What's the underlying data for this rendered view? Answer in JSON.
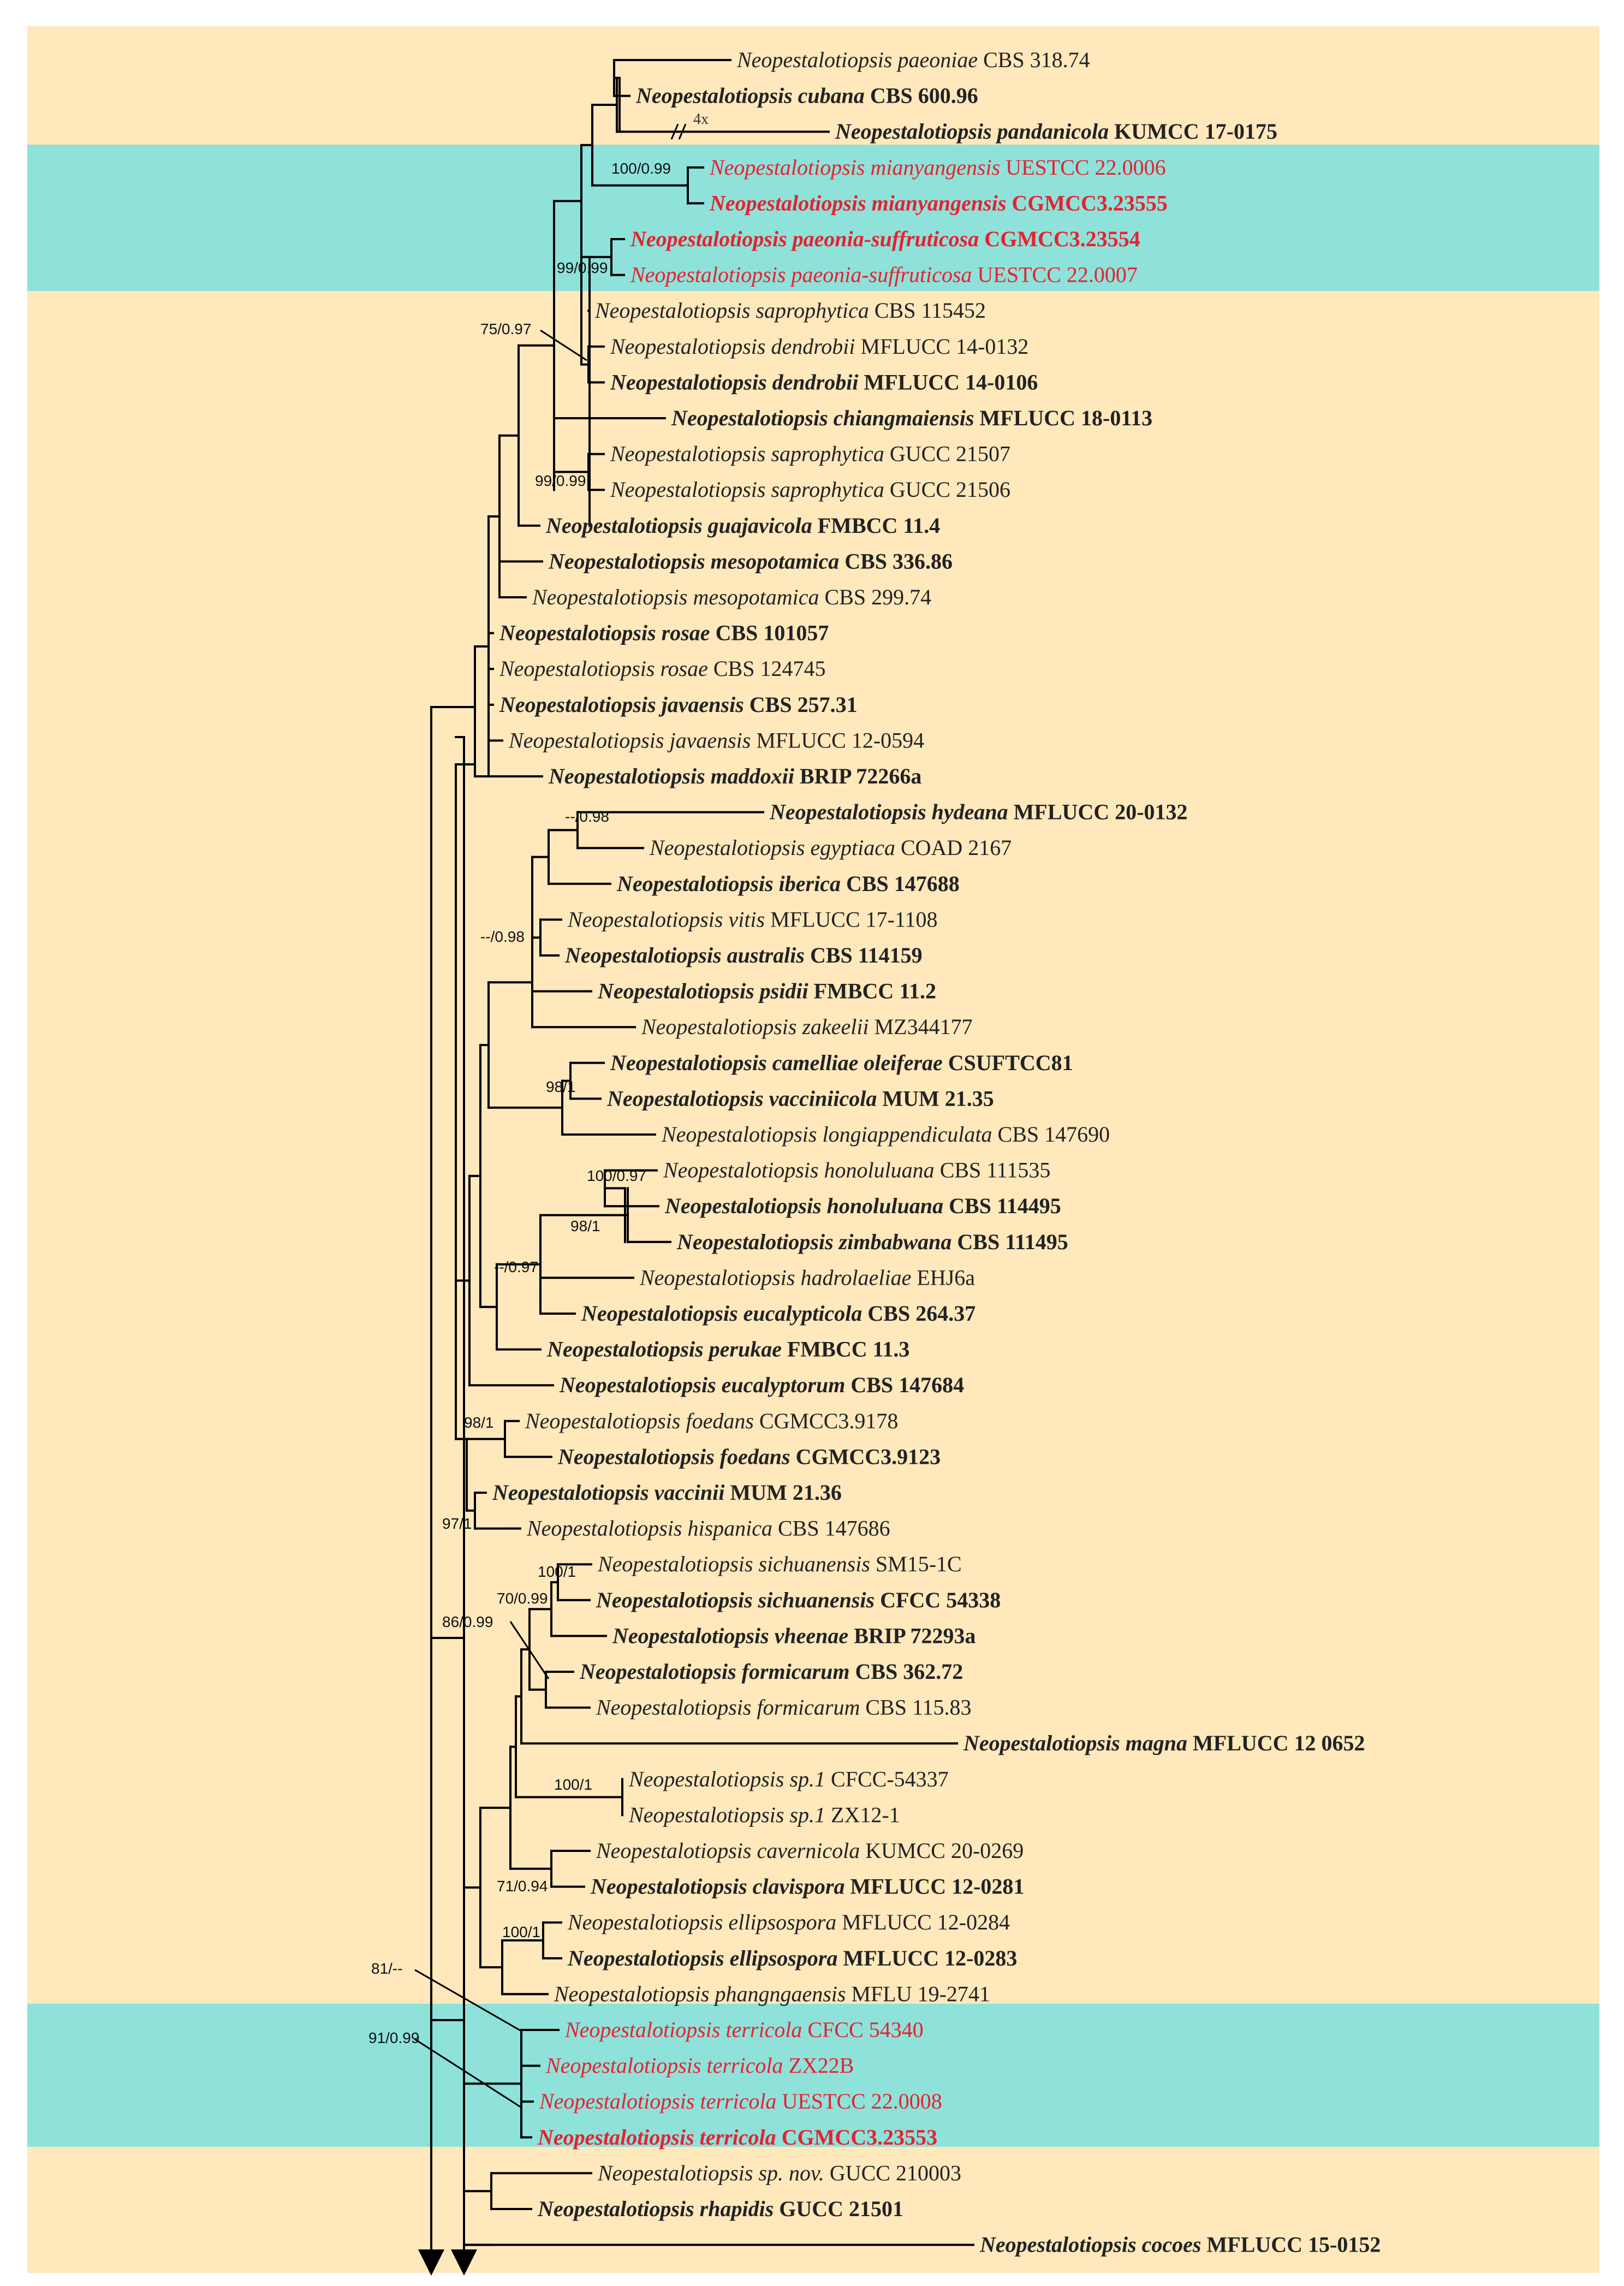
{
  "colors": {
    "background": "#ffe8bc",
    "highlight": "#8ee2da",
    "branch": "#000000",
    "label": "#222222",
    "new_species": "#e8212f",
    "support": "#111111"
  },
  "genus": "Neopestalotiopsis",
  "scale_mark": "4x",
  "taxa": [
    {
      "id": "t01",
      "epithet": "paeoniae",
      "strain": "CBS 318.74",
      "bold": false,
      "highlight": false
    },
    {
      "id": "t02",
      "epithet": "cubana",
      "strain": "CBS 600.96",
      "bold": true,
      "highlight": false
    },
    {
      "id": "t03",
      "epithet": "pandanicola",
      "strain": "KUMCC 17-0175",
      "bold": true,
      "highlight": false
    },
    {
      "id": "t04",
      "epithet": "mianyangensis",
      "strain": "UESTCC 22.0006",
      "bold": false,
      "highlight": true
    },
    {
      "id": "t05",
      "epithet": "mianyangensis",
      "strain": "CGMCC3.23555",
      "bold": true,
      "highlight": true
    },
    {
      "id": "t06",
      "epithet": "paeonia-suffruticosa",
      "strain": "CGMCC3.23554",
      "bold": true,
      "highlight": true
    },
    {
      "id": "t07",
      "epithet": "paeonia-suffruticosa",
      "strain": "UESTCC 22.0007",
      "bold": false,
      "highlight": true
    },
    {
      "id": "t08",
      "epithet": "saprophytica",
      "strain": "CBS 115452",
      "bold": false,
      "highlight": false
    },
    {
      "id": "t09",
      "epithet": "dendrobii",
      "strain": "MFLUCC 14-0132",
      "bold": false,
      "highlight": false
    },
    {
      "id": "t10",
      "epithet": "dendrobii",
      "strain": "MFLUCC 14-0106",
      "bold": true,
      "highlight": false
    },
    {
      "id": "t11",
      "epithet": "chiangmaiensis",
      "strain": "MFLUCC 18-0113",
      "bold": true,
      "highlight": false
    },
    {
      "id": "t12",
      "epithet": "saprophytica",
      "strain": "GUCC 21507",
      "bold": false,
      "highlight": false
    },
    {
      "id": "t13",
      "epithet": "saprophytica",
      "strain": "GUCC 21506",
      "bold": false,
      "highlight": false
    },
    {
      "id": "t14",
      "epithet": "guajavicola",
      "strain": "FMBCC 11.4",
      "bold": true,
      "highlight": false
    },
    {
      "id": "t15",
      "epithet": "mesopotamica",
      "strain": "CBS 336.86",
      "bold": true,
      "highlight": false
    },
    {
      "id": "t16",
      "epithet": "mesopotamica",
      "strain": "CBS 299.74",
      "bold": false,
      "highlight": false
    },
    {
      "id": "t17",
      "epithet": "rosae",
      "strain": "CBS 101057",
      "bold": true,
      "highlight": false
    },
    {
      "id": "t18",
      "epithet": "rosae",
      "strain": "CBS 124745",
      "bold": false,
      "highlight": false
    },
    {
      "id": "t19",
      "epithet": "javaensis",
      "strain": "CBS 257.31",
      "bold": true,
      "highlight": false
    },
    {
      "id": "t20",
      "epithet": "javaensis",
      "strain": "MFLUCC 12-0594",
      "bold": false,
      "highlight": false
    },
    {
      "id": "t21",
      "epithet": "maddoxii",
      "strain": "BRIP 72266a",
      "bold": true,
      "highlight": false
    },
    {
      "id": "t22",
      "epithet": "hydeana",
      "strain": "MFLUCC 20-0132",
      "bold": true,
      "highlight": false
    },
    {
      "id": "t23",
      "epithet": "egyptiaca",
      "strain": "COAD 2167",
      "bold": false,
      "highlight": false
    },
    {
      "id": "t24",
      "epithet": "iberica",
      "strain": "CBS 147688",
      "bold": true,
      "highlight": false
    },
    {
      "id": "t25",
      "epithet": "vitis",
      "strain": "MFLUCC 17-1108",
      "bold": false,
      "highlight": false
    },
    {
      "id": "t26",
      "epithet": "australis",
      "strain": "CBS 114159",
      "bold": true,
      "highlight": false
    },
    {
      "id": "t27",
      "epithet": "psidii",
      "strain": "FMBCC 11.2",
      "bold": true,
      "highlight": false
    },
    {
      "id": "t28",
      "epithet": "zakeelii",
      "strain": "MZ344177",
      "bold": false,
      "highlight": false
    },
    {
      "id": "t29",
      "epithet": "camelliae oleiferae",
      "strain": "CSUFTCC81",
      "bold": true,
      "highlight": false
    },
    {
      "id": "t30",
      "epithet": "vacciniicola",
      "strain": "MUM 21.35",
      "bold": true,
      "highlight": false
    },
    {
      "id": "t31",
      "epithet": "longiappendiculata",
      "strain": "CBS 147690",
      "bold": false,
      "highlight": false
    },
    {
      "id": "t32",
      "epithet": "honoluluana",
      "strain": "CBS 111535",
      "bold": false,
      "highlight": false
    },
    {
      "id": "t33",
      "epithet": "honoluluana",
      "strain": "CBS 114495",
      "bold": true,
      "highlight": false
    },
    {
      "id": "t34",
      "epithet": "zimbabwana",
      "strain": "CBS 111495",
      "bold": true,
      "highlight": false
    },
    {
      "id": "t35",
      "epithet": "hadrolaeliae",
      "strain": "EHJ6a",
      "bold": false,
      "highlight": false
    },
    {
      "id": "t36",
      "epithet": "eucalypticola",
      "strain": "CBS 264.37",
      "bold": true,
      "highlight": false
    },
    {
      "id": "t37",
      "epithet": "perukae",
      "strain": "FMBCC 11.3",
      "bold": true,
      "highlight": false
    },
    {
      "id": "t38",
      "epithet": "eucalyptorum",
      "strain": "CBS 147684",
      "bold": true,
      "highlight": false
    },
    {
      "id": "t39",
      "epithet": "foedans",
      "strain": "CGMCC3.9178",
      "bold": false,
      "highlight": false
    },
    {
      "id": "t40",
      "epithet": "foedans",
      "strain": "CGMCC3.9123",
      "bold": true,
      "highlight": false
    },
    {
      "id": "t41",
      "epithet": "vaccinii",
      "strain": "MUM 21.36",
      "bold": true,
      "highlight": false
    },
    {
      "id": "t42",
      "epithet": "hispanica",
      "strain": "CBS 147686",
      "bold": false,
      "highlight": false
    },
    {
      "id": "t43",
      "epithet": "sichuanensis",
      "strain": "SM15-1C",
      "bold": false,
      "highlight": false
    },
    {
      "id": "t44",
      "epithet": "sichuanensis",
      "strain": "CFCC 54338",
      "bold": true,
      "highlight": false
    },
    {
      "id": "t45",
      "epithet": "vheenae",
      "strain": "BRIP 72293a",
      "bold": true,
      "highlight": false
    },
    {
      "id": "t46",
      "epithet": "formicarum",
      "strain": "CBS 362.72",
      "bold": true,
      "highlight": false
    },
    {
      "id": "t47",
      "epithet": "formicarum",
      "strain": "CBS 115.83",
      "bold": false,
      "highlight": false
    },
    {
      "id": "t48",
      "epithet": "magna",
      "strain": "MFLUCC 12 0652",
      "bold": true,
      "highlight": false
    },
    {
      "id": "t49",
      "epithet": "sp.1",
      "strain": "CFCC-54337",
      "bold": false,
      "highlight": false
    },
    {
      "id": "t50",
      "epithet": "sp.1",
      "strain": "ZX12-1",
      "bold": false,
      "highlight": false
    },
    {
      "id": "t51",
      "epithet": "cavernicola",
      "strain": "KUMCC 20-0269",
      "bold": false,
      "highlight": false
    },
    {
      "id": "t52",
      "epithet": "clavispora",
      "strain": "MFLUCC 12-0281",
      "bold": true,
      "highlight": false
    },
    {
      "id": "t53",
      "epithet": "ellipsospora",
      "strain": "MFLUCC 12-0284",
      "bold": false,
      "highlight": false
    },
    {
      "id": "t54",
      "epithet": "ellipsospora",
      "strain": "MFLUCC 12-0283",
      "bold": true,
      "highlight": false
    },
    {
      "id": "t55",
      "epithet": "phangngaensis",
      "strain": "MFLU 19-2741",
      "bold": false,
      "highlight": false
    },
    {
      "id": "t56",
      "epithet": "terricola",
      "strain": "CFCC 54340",
      "bold": false,
      "highlight": true
    },
    {
      "id": "t57",
      "epithet": "terricola",
      "strain": "ZX22B",
      "bold": false,
      "highlight": true
    },
    {
      "id": "t58",
      "epithet": "terricola",
      "strain": "UESTCC 22.0008",
      "bold": false,
      "highlight": true
    },
    {
      "id": "t59",
      "epithet": "terricola",
      "strain": "CGMCC3.23553",
      "bold": true,
      "highlight": true
    },
    {
      "id": "t60",
      "epithet": "sp. nov.",
      "strain": "GUCC 210003",
      "bold": false,
      "highlight": false
    },
    {
      "id": "t61",
      "epithet": "rhapidis",
      "strain": "GUCC 21501",
      "bold": true,
      "highlight": false
    },
    {
      "id": "t62",
      "epithet": "cocoes",
      "strain": "MFLUCC 15-0152",
      "bold": true,
      "highlight": false
    }
  ],
  "supports": [
    {
      "id": "s01",
      "text": "100/0.99"
    },
    {
      "id": "s02",
      "text": "99/0.99"
    },
    {
      "id": "s03",
      "text": "75/0.97"
    },
    {
      "id": "s04",
      "text": "99/0.99"
    },
    {
      "id": "s05",
      "text": "--/0.98"
    },
    {
      "id": "s06",
      "text": "--/0.98"
    },
    {
      "id": "s07",
      "text": "98/1"
    },
    {
      "id": "s08",
      "text": "100/0.97"
    },
    {
      "id": "s09",
      "text": "98/1"
    },
    {
      "id": "s10",
      "text": "--/0.97"
    },
    {
      "id": "s11",
      "text": "98/1"
    },
    {
      "id": "s12",
      "text": "97/1"
    },
    {
      "id": "s13",
      "text": "100/1"
    },
    {
      "id": "s14",
      "text": "70/0.99"
    },
    {
      "id": "s15",
      "text": "86/0.99"
    },
    {
      "id": "s16",
      "text": "100/1"
    },
    {
      "id": "s17",
      "text": "71/0.94"
    },
    {
      "id": "s18",
      "text": "100/1"
    },
    {
      "id": "s19",
      "text": "81/--"
    },
    {
      "id": "s20",
      "text": "91/0.99"
    }
  ]
}
